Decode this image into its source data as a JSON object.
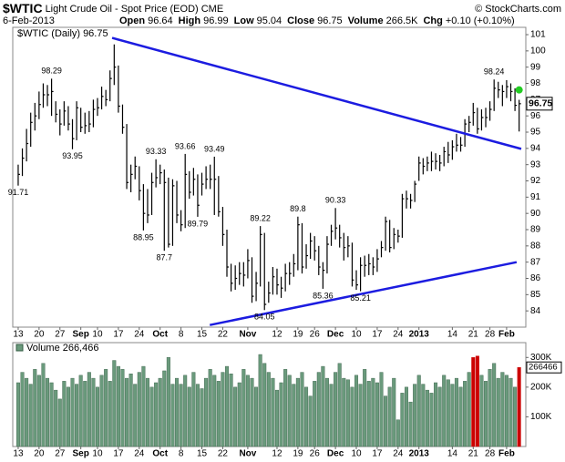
{
  "chart_data": {
    "type": "hlc",
    "symbol": "$WTIC",
    "title": "Light Crude Oil - Spot Price (EOD) CME",
    "credit": "© StockCharts.com",
    "date": "6-Feb-2013",
    "quote": [
      {
        "label": "Open",
        "value": 96.64
      },
      {
        "label": "High",
        "value": 96.99
      },
      {
        "label": "Low",
        "value": 95.04
      },
      {
        "label": "Close",
        "value": 96.75
      },
      {
        "label": "Volume",
        "value": "266.5K"
      },
      {
        "label": "Chg",
        "value": "+0.10 (+0.10%)"
      }
    ],
    "legend": "$WTIC (Daily)",
    "color": "#000000",
    "xlim": [
      -1.3,
      121.6
    ],
    "xticks": [
      {
        "value": 0,
        "label": "13"
      },
      {
        "value": 5,
        "label": "20"
      },
      {
        "value": 10,
        "label": "27"
      },
      {
        "value": 15,
        "label": "Sep"
      },
      {
        "value": 19,
        "label": "10"
      },
      {
        "value": 24,
        "label": "17"
      },
      {
        "value": 29,
        "label": "24"
      },
      {
        "value": 34,
        "label": "Oct"
      },
      {
        "value": 39,
        "label": "8"
      },
      {
        "value": 44,
        "label": "15"
      },
      {
        "value": 49,
        "label": "22"
      },
      {
        "value": 55,
        "label": "Nov"
      },
      {
        "value": 62,
        "label": "12"
      },
      {
        "value": 67,
        "label": "19"
      },
      {
        "value": 71,
        "label": "26"
      },
      {
        "value": 76,
        "label": "Dec"
      },
      {
        "value": 81,
        "label": "10"
      },
      {
        "value": 86,
        "label": "17"
      },
      {
        "value": 91,
        "label": "24"
      },
      {
        "value": 96,
        "label": "2013"
      },
      {
        "value": 104,
        "label": "14"
      },
      {
        "value": 109,
        "label": "21"
      },
      {
        "value": 113,
        "label": "28"
      },
      {
        "value": 117,
        "label": "Feb"
      }
    ],
    "ylim": [
      83.0,
      101.45
    ],
    "yticks": [
      84,
      85,
      86,
      87,
      88,
      89,
      90,
      91,
      92,
      93,
      94,
      95,
      96,
      97,
      98,
      99,
      100,
      101
    ],
    "high": [
      93.0,
      94.0,
      95.2,
      96.2,
      96.8,
      97.5,
      98.0,
      97.9,
      98.29,
      96.9,
      96.4,
      96.9,
      96.6,
      95.8,
      96.9,
      96.5,
      96.2,
      96.3,
      97.0,
      97.1,
      97.8,
      97.6,
      98.8,
      100.4,
      99.1,
      96.7,
      95.5,
      93.0,
      93.5,
      92.9,
      91.8,
      91.5,
      92.5,
      93.33,
      93.0,
      92.7,
      92.2,
      92.1,
      92.0,
      90.2,
      93.66,
      92.6,
      92.8,
      92.4,
      92.5,
      92.9,
      93.0,
      93.49,
      92.3,
      90.4,
      89.0,
      86.9,
      86.8,
      87.0,
      87.0,
      87.8,
      87.3,
      86.4,
      89.22,
      88.8,
      85.8,
      86.7,
      86.6,
      86.1,
      86.9,
      87.0,
      87.5,
      89.8,
      89.4,
      88.1,
      88.8,
      88.6,
      88.0,
      87.0,
      88.6,
      89.3,
      90.33,
      89.3,
      88.8,
      88.6,
      88.2,
      86.5,
      87.3,
      87.4,
      87.5,
      87.3,
      87.8,
      88.3,
      89.8,
      89.6,
      89.1,
      89.0,
      91.2,
      91.4,
      91.2,
      92.0,
      93.5,
      93.4,
      93.5,
      93.8,
      93.7,
      93.6,
      94.1,
      94.4,
      94.5,
      94.9,
      94.7,
      95.8,
      96.0,
      96.8,
      96.5,
      96.4,
      96.5,
      96.9,
      98.24,
      98.1,
      97.9,
      98.2,
      98.0,
      97.7,
      96.99
    ],
    "low": [
      91.71,
      92.3,
      93.2,
      94.1,
      95.1,
      95.8,
      96.5,
      96.6,
      96.0,
      95.6,
      94.8,
      95.4,
      95.1,
      93.95,
      94.5,
      95.0,
      94.9,
      95.0,
      95.3,
      96.0,
      96.4,
      96.6,
      96.9,
      97.9,
      96.2,
      94.9,
      91.5,
      91.3,
      92.1,
      90.8,
      88.95,
      89.4,
      89.9,
      91.6,
      91.8,
      87.7,
      87.9,
      88.0,
      89.4,
      88.9,
      89.1,
      90.9,
      91.1,
      89.79,
      91.1,
      91.5,
      91.5,
      89.9,
      89.8,
      88.0,
      86.1,
      85.2,
      85.3,
      85.6,
      85.5,
      86.0,
      84.5,
      84.6,
      85.5,
      84.05,
      84.5,
      85.0,
      85.0,
      84.8,
      85.2,
      85.6,
      86.1,
      86.5,
      86.3,
      86.6,
      87.2,
      87.1,
      86.2,
      85.36,
      86.3,
      88.0,
      88.4,
      87.9,
      87.1,
      87.3,
      85.5,
      85.3,
      85.21,
      86.1,
      86.2,
      86.2,
      86.4,
      87.3,
      87.7,
      87.6,
      87.8,
      88.2,
      88.5,
      90.3,
      90.3,
      90.7,
      92.0,
      92.4,
      92.6,
      92.6,
      92.7,
      92.6,
      92.9,
      93.1,
      93.3,
      93.8,
      93.8,
      94.1,
      95.0,
      95.4,
      94.9,
      95.1,
      95.3,
      95.7,
      96.3,
      97.1,
      96.6,
      97.1,
      96.9,
      96.3,
      95.04
    ],
    "close": [
      92.4,
      93.4,
      94.3,
      95.6,
      96.0,
      96.7,
      97.3,
      97.3,
      97.5,
      96.1,
      95.5,
      96.3,
      95.5,
      94.6,
      96.5,
      95.3,
      95.4,
      95.5,
      96.4,
      96.5,
      97.2,
      97.0,
      98.3,
      99.0,
      96.6,
      95.3,
      91.9,
      92.4,
      92.9,
      91.4,
      90.0,
      89.9,
      91.9,
      92.2,
      92.5,
      91.9,
      88.1,
      91.7,
      89.9,
      89.3,
      92.4,
      91.3,
      92.1,
      90.5,
      91.8,
      92.1,
      92.1,
      92.1,
      90.1,
      88.7,
      86.7,
      85.7,
      86.0,
      86.3,
      86.2,
      87.1,
      84.9,
      85.7,
      88.7,
      84.4,
      85.1,
      86.1,
      85.6,
      85.4,
      86.3,
      86.3,
      86.9,
      89.3,
      86.7,
      87.4,
      88.3,
      87.7,
      86.7,
      86.5,
      88.1,
      88.9,
      89.1,
      88.5,
      87.9,
      88.0,
      85.9,
      85.6,
      86.8,
      86.8,
      86.9,
      86.7,
      87.2,
      87.9,
      89.5,
      87.9,
      88.7,
      88.6,
      90.9,
      90.9,
      90.8,
      91.8,
      93.1,
      92.9,
      93.1,
      93.2,
      93.2,
      93.1,
      93.8,
      93.6,
      94.1,
      94.2,
      94.2,
      95.5,
      95.6,
      96.2,
      95.2,
      95.9,
      95.9,
      96.4,
      97.7,
      97.6,
      97.5,
      97.8,
      97.5,
      96.65,
      96.75
    ],
    "annotations": [
      {
        "x": 0,
        "value": 91.71
      },
      {
        "x": 8,
        "value": 98.29
      },
      {
        "x": 13,
        "value": 93.95
      },
      {
        "x": 30,
        "value": 88.95
      },
      {
        "x": 33,
        "value": 93.33
      },
      {
        "x": 35,
        "value": 87.7
      },
      {
        "x": 40,
        "value": 93.66
      },
      {
        "x": 43,
        "value": 89.79
      },
      {
        "x": 47,
        "value": 93.49
      },
      {
        "x": 58,
        "value": 89.22
      },
      {
        "x": 59,
        "value": 84.05
      },
      {
        "x": 67,
        "value": 89.8
      },
      {
        "x": 73,
        "value": 85.36
      },
      {
        "x": 76,
        "value": 90.33
      },
      {
        "x": 82,
        "value": 85.21
      },
      {
        "x": 114,
        "value": 98.24
      }
    ],
    "trendlines": [
      {
        "color": "#1c1ce0",
        "x": [
          22.5,
          120.5
        ],
        "values": [
          100.8,
          93.97
        ]
      },
      {
        "color": "#1c1ce0",
        "x": [
          45.9,
          119.4
        ],
        "values": [
          83.13,
          87.0
        ]
      }
    ],
    "marker": {
      "x": 120,
      "value": 97.6,
      "color": "#22cc22"
    },
    "volume": {
      "name": "Volume",
      "last_label": "266,466",
      "color": "#6a9a7c",
      "highlight_color": "#cc0000",
      "highlight": [
        109,
        110,
        120
      ],
      "ylim": [
        0,
        350000
      ],
      "yticks": [
        {
          "value": 100000,
          "label": "100K"
        },
        {
          "value": 200000,
          "label": "200K"
        },
        {
          "value": 300000,
          "label": "300K"
        }
      ],
      "values": [
        215000,
        250000,
        230000,
        210000,
        260000,
        240000,
        280000,
        230000,
        215000,
        190000,
        160000,
        220000,
        200000,
        230000,
        210000,
        240000,
        220000,
        250000,
        230000,
        200000,
        240000,
        260000,
        220000,
        290000,
        270000,
        260000,
        230000,
        245000,
        210000,
        250000,
        270000,
        230000,
        200000,
        215000,
        230000,
        255000,
        300000,
        210000,
        230000,
        210000,
        240000,
        200000,
        250000,
        210000,
        195000,
        230000,
        260000,
        240000,
        220000,
        250000,
        270000,
        245000,
        200000,
        215000,
        260000,
        240000,
        230000,
        200000,
        310000,
        280000,
        250000,
        230000,
        190000,
        215000,
        260000,
        240000,
        210000,
        230000,
        250000,
        200000,
        170000,
        220000,
        250000,
        270000,
        230000,
        210000,
        250000,
        280000,
        230000,
        225000,
        200000,
        240000,
        210000,
        260000,
        220000,
        230000,
        215000,
        250000,
        170000,
        200000,
        230000,
        90000,
        180000,
        200000,
        150000,
        210000,
        240000,
        210000,
        190000,
        180000,
        215000,
        200000,
        240000,
        225000,
        210000,
        230000,
        200000,
        220000,
        250000,
        300000,
        305000,
        240000,
        220000,
        260000,
        280000,
        230000,
        250000,
        240000,
        230000,
        200000,
        266466
      ]
    }
  }
}
